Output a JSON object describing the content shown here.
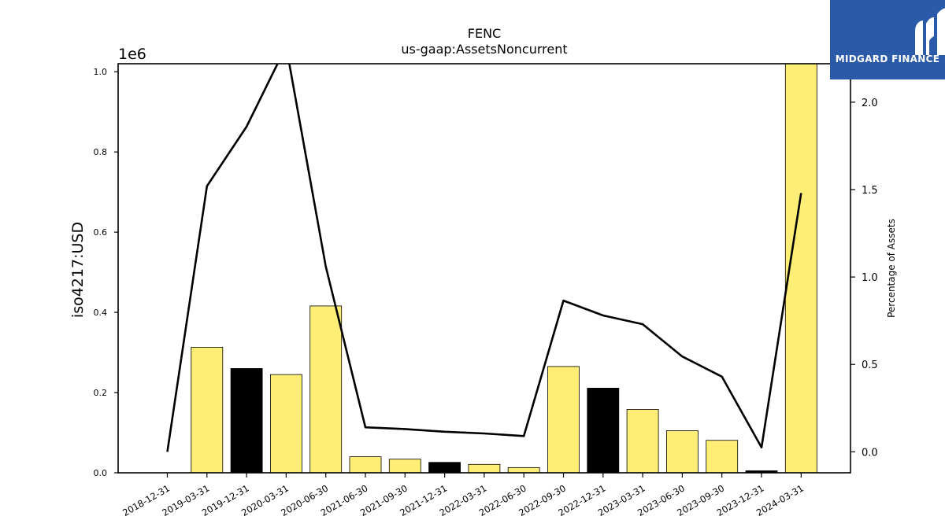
{
  "chart_data": {
    "type": "bar",
    "title": "FENC",
    "subtitle": "us-gaap:AssetsNoncurrent",
    "ylabel": "iso4217:USD",
    "y2label": "Percentage of Assets",
    "y_offset_label": "1e6",
    "ylim": [
      0,
      1020000
    ],
    "y2lim": [
      -0.12,
      2.22
    ],
    "yticks": [
      "0.0",
      "0.2",
      "0.4",
      "0.6",
      "0.8",
      "1.0"
    ],
    "y2ticks": [
      "0.0",
      "0.5",
      "1.0",
      "1.5",
      "2.0"
    ],
    "categories": [
      "2018-12-31",
      "2019-03-31",
      "2019-12-31",
      "2020-03-31",
      "2020-06-30",
      "2021-06-30",
      "2021-09-30",
      "2021-12-31",
      "2022-03-31",
      "2022-06-30",
      "2022-09-30",
      "2022-12-31",
      "2023-03-31",
      "2023-06-30",
      "2023-09-30",
      "2023-12-31",
      "2024-03-31"
    ],
    "series": [
      {
        "type": "bar",
        "values": [
          0,
          313000,
          260000,
          245000,
          416000,
          40000,
          34000,
          26000,
          21000,
          13000,
          265000,
          211000,
          158000,
          105000,
          81000,
          5000,
          1020000
        ],
        "colors": [
          "#ffee75",
          "#ffee75",
          "#000000",
          "#ffee75",
          "#ffee75",
          "#ffee75",
          "#ffee75",
          "#000000",
          "#ffee75",
          "#ffee75",
          "#ffee75",
          "#000000",
          "#ffee75",
          "#ffee75",
          "#ffee75",
          "#000000",
          "#ffee75"
        ]
      },
      {
        "type": "line",
        "axis": "right",
        "color": "#000000",
        "values": [
          0.0,
          1.52,
          1.86,
          2.32,
          1.06,
          0.14,
          0.13,
          0.115,
          0.105,
          0.09,
          0.865,
          0.78,
          0.73,
          0.545,
          0.43,
          0.025,
          1.48
        ]
      }
    ],
    "grid": false
  },
  "logo": {
    "text": "MIDGARD FINANCE",
    "color": "#2a5aa8"
  }
}
